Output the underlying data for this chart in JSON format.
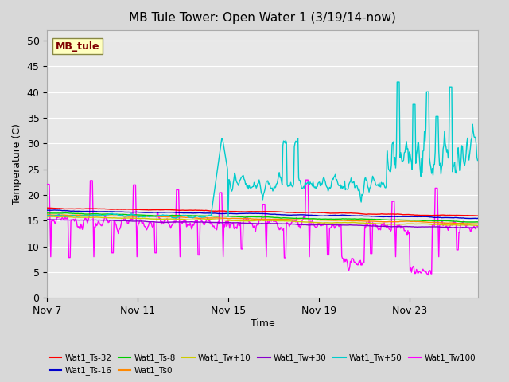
{
  "title": "MB Tule Tower: Open Water 1 (3/19/14-now)",
  "xlabel": "Time",
  "ylabel": "Temperature (C)",
  "ylim": [
    0,
    52
  ],
  "yticks": [
    0,
    5,
    10,
    15,
    20,
    25,
    30,
    35,
    40,
    45,
    50
  ],
  "xlim": [
    0,
    19
  ],
  "xtick_positions": [
    0,
    4,
    8,
    12,
    16
  ],
  "xtick_labels": [
    "Nov 7",
    "Nov 11",
    "Nov 15",
    "Nov 19",
    "Nov 23"
  ],
  "bg_color": "#d8d8d8",
  "plot_bg_color": "#e8e8e8",
  "legend_box_color": "#ffffc0",
  "legend_box_text": "MB_tule",
  "legend_box_text_color": "#800000",
  "series": [
    {
      "name": "Wat1_Ts-32",
      "color": "#ff0000"
    },
    {
      "name": "Wat1_Ts-16",
      "color": "#0000cc"
    },
    {
      "name": "Wat1_Ts-8",
      "color": "#00cc00"
    },
    {
      "name": "Wat1_Ts0",
      "color": "#ff8800"
    },
    {
      "name": "Wat1_Tw+10",
      "color": "#cccc00"
    },
    {
      "name": "Wat1_Tw+30",
      "color": "#8800cc"
    },
    {
      "name": "Wat1_Tw+50",
      "color": "#00cccc"
    },
    {
      "name": "Wat1_Tw100",
      "color": "#ff00ff"
    }
  ]
}
